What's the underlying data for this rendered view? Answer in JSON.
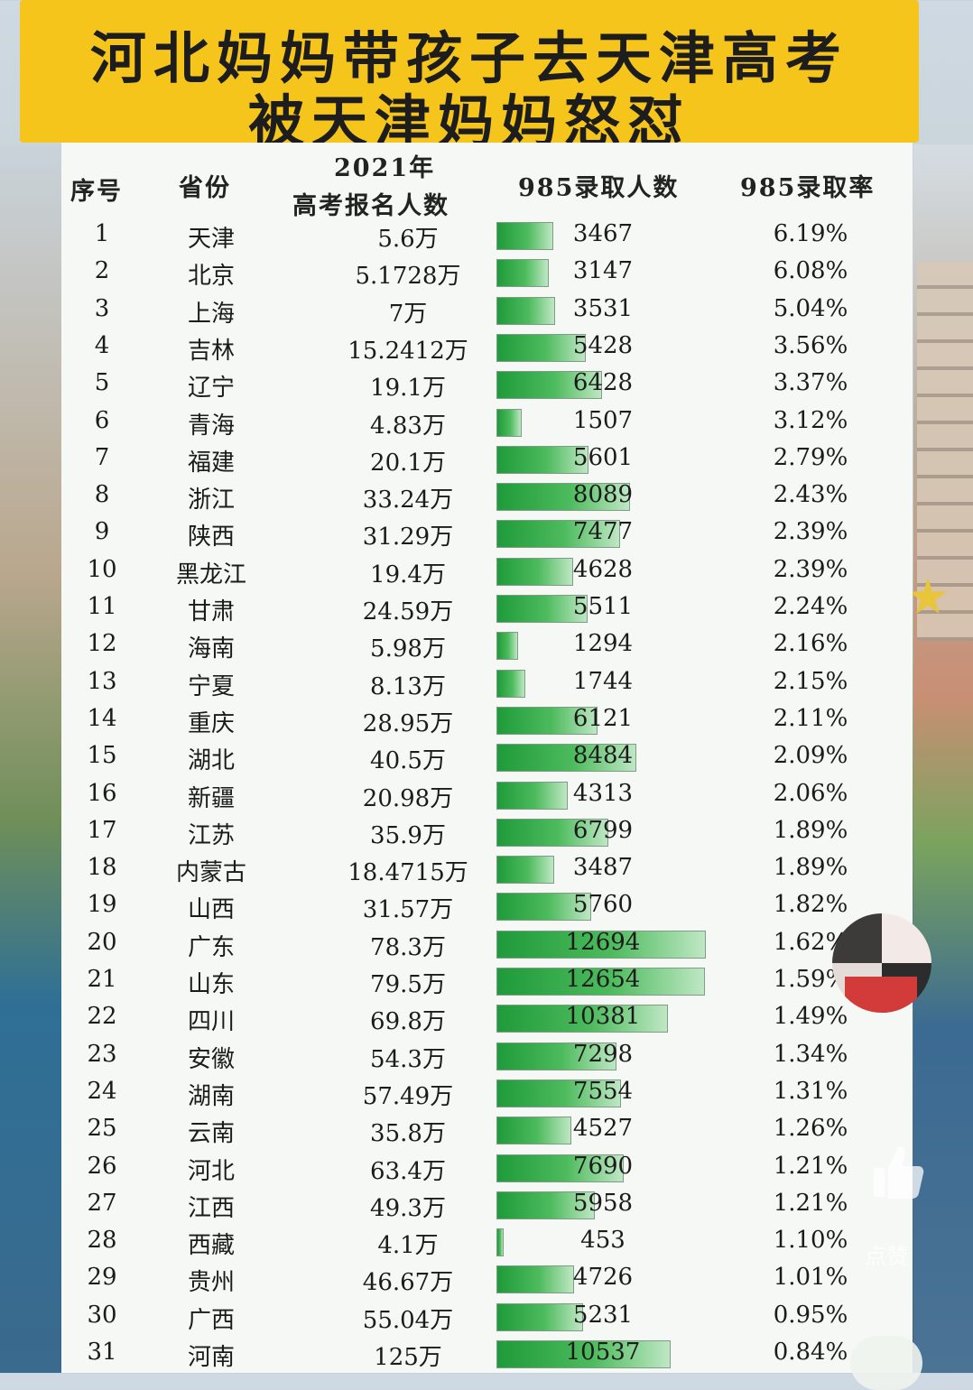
{
  "title_line1": "河北妈妈带孩子去天津高考",
  "title_line2": "被天津妈妈怒怼",
  "headers": {
    "no": "序号",
    "province": "省份",
    "registrants_line1": "2021年",
    "registrants_line2": "高考报名人数",
    "admitted": "985录取人数",
    "rate": "985录取率"
  },
  "rows": [
    {
      "no": "1",
      "province": "天津",
      "registrants": "5.6万",
      "admitted": "3467",
      "rate": "6.19%"
    },
    {
      "no": "2",
      "province": "北京",
      "registrants": "5.1728万",
      "admitted": "3147",
      "rate": "6.08%"
    },
    {
      "no": "3",
      "province": "上海",
      "registrants": "7万",
      "admitted": "3531",
      "rate": "5.04%"
    },
    {
      "no": "4",
      "province": "吉林",
      "registrants": "15.2412万",
      "admitted": "5428",
      "rate": "3.56%"
    },
    {
      "no": "5",
      "province": "辽宁",
      "registrants": "19.1万",
      "admitted": "6428",
      "rate": "3.37%"
    },
    {
      "no": "6",
      "province": "青海",
      "registrants": "4.83万",
      "admitted": "1507",
      "rate": "3.12%"
    },
    {
      "no": "7",
      "province": "福建",
      "registrants": "20.1万",
      "admitted": "5601",
      "rate": "2.79%"
    },
    {
      "no": "8",
      "province": "浙江",
      "registrants": "33.24万",
      "admitted": "8089",
      "rate": "2.43%"
    },
    {
      "no": "9",
      "province": "陕西",
      "registrants": "31.29万",
      "admitted": "7477",
      "rate": "2.39%"
    },
    {
      "no": "10",
      "province": "黑龙江",
      "registrants": "19.4万",
      "admitted": "4628",
      "rate": "2.39%"
    },
    {
      "no": "11",
      "province": "甘肃",
      "registrants": "24.59万",
      "admitted": "5511",
      "rate": "2.24%"
    },
    {
      "no": "12",
      "province": "海南",
      "registrants": "5.98万",
      "admitted": "1294",
      "rate": "2.16%"
    },
    {
      "no": "13",
      "province": "宁夏",
      "registrants": "8.13万",
      "admitted": "1744",
      "rate": "2.15%"
    },
    {
      "no": "14",
      "province": "重庆",
      "registrants": "28.95万",
      "admitted": "6121",
      "rate": "2.11%"
    },
    {
      "no": "15",
      "province": "湖北",
      "registrants": "40.5万",
      "admitted": "8484",
      "rate": "2.09%"
    },
    {
      "no": "16",
      "province": "新疆",
      "registrants": "20.98万",
      "admitted": "4313",
      "rate": "2.06%"
    },
    {
      "no": "17",
      "province": "江苏",
      "registrants": "35.9万",
      "admitted": "6799",
      "rate": "1.89%"
    },
    {
      "no": "18",
      "province": "内蒙古",
      "registrants": "18.4715万",
      "admitted": "3487",
      "rate": "1.89%"
    },
    {
      "no": "19",
      "province": "山西",
      "registrants": "31.57万",
      "admitted": "5760",
      "rate": "1.82%"
    },
    {
      "no": "20",
      "province": "广东",
      "registrants": "78.3万",
      "admitted": "12694",
      "rate": "1.62%"
    },
    {
      "no": "21",
      "province": "山东",
      "registrants": "79.5万",
      "admitted": "12654",
      "rate": "1.59%"
    },
    {
      "no": "22",
      "province": "四川",
      "registrants": "69.8万",
      "admitted": "10381",
      "rate": "1.49%"
    },
    {
      "no": "23",
      "province": "安徽",
      "registrants": "54.3万",
      "admitted": "7298",
      "rate": "1.34%"
    },
    {
      "no": "24",
      "province": "湖南",
      "registrants": "57.49万",
      "admitted": "7554",
      "rate": "1.31%"
    },
    {
      "no": "25",
      "province": "云南",
      "registrants": "35.8万",
      "admitted": "4527",
      "rate": "1.26%"
    },
    {
      "no": "26",
      "province": "河北",
      "registrants": "63.4万",
      "admitted": "7690",
      "rate": "1.21%"
    },
    {
      "no": "27",
      "province": "江西",
      "registrants": "49.3万",
      "admitted": "5958",
      "rate": "1.21%"
    },
    {
      "no": "28",
      "province": "西藏",
      "registrants": "4.1万",
      "admitted": "453",
      "rate": "1.10%"
    },
    {
      "no": "29",
      "province": "贵州",
      "registrants": "46.67万",
      "admitted": "4726",
      "rate": "1.01%"
    },
    {
      "no": "30",
      "province": "广西",
      "registrants": "55.04万",
      "admitted": "5231",
      "rate": "0.95%"
    },
    {
      "no": "31",
      "province": "河南",
      "registrants": "125万",
      "admitted": "10537",
      "rate": "0.84%"
    }
  ],
  "like_label": "点赞",
  "colors": {
    "banner": "#f5c51b",
    "bar": "#2fa84a",
    "panel": "#f6f8f6"
  },
  "chart_data": {
    "type": "bar",
    "title": "河北妈妈带孩子去天津高考 被天津妈妈怒怼",
    "categories": [
      "天津",
      "北京",
      "上海",
      "吉林",
      "辽宁",
      "青海",
      "福建",
      "浙江",
      "陕西",
      "黑龙江",
      "甘肃",
      "海南",
      "宁夏",
      "重庆",
      "湖北",
      "新疆",
      "江苏",
      "内蒙古",
      "山西",
      "广东",
      "山东",
      "四川",
      "安徽",
      "湖南",
      "云南",
      "河北",
      "江西",
      "西藏",
      "贵州",
      "广西",
      "河南"
    ],
    "series": [
      {
        "name": "985录取人数",
        "values": [
          3467,
          3147,
          3531,
          5428,
          6428,
          1507,
          5601,
          8089,
          7477,
          4628,
          5511,
          1294,
          1744,
          6121,
          8484,
          4313,
          6799,
          3487,
          5760,
          12694,
          12654,
          10381,
          7298,
          7554,
          4527,
          7690,
          5958,
          453,
          4726,
          5231,
          10537
        ]
      }
    ],
    "orientation": "horizontal",
    "xlim": [
      0,
      12694
    ]
  }
}
